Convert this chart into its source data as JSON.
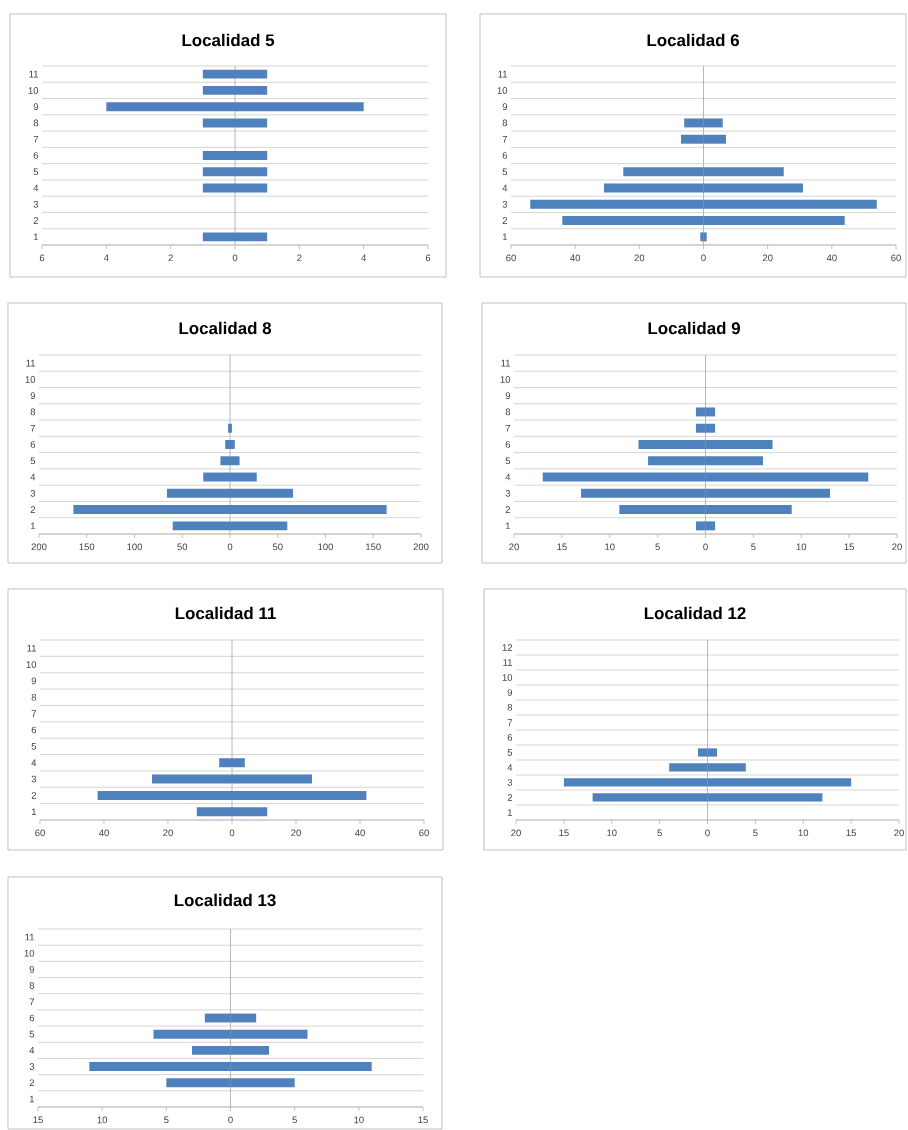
{
  "chart_data": [
    {
      "type": "bar",
      "orientation": "horizontal",
      "title": "Localidad 5",
      "stacked": true,
      "grid": "y",
      "categories": [
        "11",
        "10",
        "9",
        "8",
        "7",
        "6",
        "5",
        "4",
        "3",
        "2",
        "1"
      ],
      "xlim": [
        -6,
        6
      ],
      "xticks": [
        {
          "value": -6,
          "label": "6"
        },
        {
          "value": -4,
          "label": "4"
        },
        {
          "value": -2,
          "label": "2"
        },
        0,
        2,
        4,
        6
      ],
      "series": [
        {
          "color": "#4f81bd",
          "values": [
            -1,
            -1,
            -4,
            -1,
            null,
            -1,
            -1,
            -1,
            null,
            null,
            -1
          ]
        },
        {
          "color": "#4f81bd",
          "values": [
            1,
            1,
            4,
            1,
            null,
            1,
            1,
            1,
            null,
            null,
            1
          ]
        }
      ]
    },
    {
      "type": "bar",
      "orientation": "horizontal",
      "title": "Localidad 6",
      "stacked": true,
      "grid": "y",
      "categories": [
        "11",
        "10",
        "9",
        "8",
        "7",
        "6",
        "5",
        "4",
        "3",
        "2",
        "1"
      ],
      "xlim": [
        -60,
        60
      ],
      "xticks": [
        {
          "value": -60,
          "label": "60"
        },
        {
          "value": -40,
          "label": "40"
        },
        {
          "value": -20,
          "label": "20"
        },
        0,
        20,
        40,
        60
      ],
      "series": [
        {
          "color": "#4f81bd",
          "values": [
            null,
            null,
            null,
            -6,
            -7,
            null,
            -25,
            -31,
            -54,
            -44,
            -1
          ]
        },
        {
          "color": "#4f81bd",
          "values": [
            null,
            null,
            null,
            6,
            7,
            null,
            25,
            31,
            54,
            44,
            1
          ]
        }
      ]
    },
    {
      "type": "bar",
      "orientation": "horizontal",
      "title": "Localidad  8",
      "stacked": true,
      "grid": "y",
      "categories": [
        "11",
        "10",
        "9",
        "8",
        "7",
        "6",
        "5",
        "4",
        "3",
        "2",
        "1"
      ],
      "xlim": [
        -200,
        200
      ],
      "xticks": [
        {
          "value": -200,
          "label": "200"
        },
        {
          "value": -150,
          "label": "150"
        },
        {
          "value": -100,
          "label": "100"
        },
        {
          "value": -50,
          "label": "50"
        },
        0,
        50,
        100,
        150,
        200
      ],
      "series": [
        {
          "color": "#4f81bd",
          "values": [
            null,
            null,
            null,
            null,
            -2,
            -5,
            -10,
            -28,
            -66,
            -164,
            -60
          ]
        },
        {
          "color": "#4f81bd",
          "values": [
            null,
            null,
            null,
            null,
            2,
            5,
            10,
            28,
            66,
            164,
            60
          ]
        }
      ]
    },
    {
      "type": "bar",
      "orientation": "horizontal",
      "title": "Localidad 9",
      "stacked": true,
      "grid": "y",
      "categories": [
        "11",
        "10",
        "9",
        "8",
        "7",
        "6",
        "5",
        "4",
        "3",
        "2",
        "1"
      ],
      "xlim": [
        -20,
        20
      ],
      "xticks": [
        {
          "value": -20,
          "label": "20"
        },
        {
          "value": -15,
          "label": "15"
        },
        {
          "value": -10,
          "label": "10"
        },
        {
          "value": -5,
          "label": "5"
        },
        0,
        5,
        10,
        15,
        20
      ],
      "series": [
        {
          "color": "#4f81bd",
          "values": [
            null,
            null,
            null,
            -1,
            -1,
            -7,
            -6,
            -17,
            -13,
            -9,
            -1
          ]
        },
        {
          "color": "#4f81bd",
          "values": [
            null,
            null,
            null,
            1,
            1,
            7,
            6,
            17,
            13,
            9,
            1
          ]
        }
      ]
    },
    {
      "type": "bar",
      "orientation": "horizontal",
      "title": "Localidad 11",
      "stacked": true,
      "grid": "y",
      "categories": [
        "11",
        "10",
        "9",
        "8",
        "7",
        "6",
        "5",
        "4",
        "3",
        "2",
        "1"
      ],
      "xlim": [
        -60,
        60
      ],
      "xticks": [
        {
          "value": -60,
          "label": "60"
        },
        {
          "value": -40,
          "label": "40"
        },
        {
          "value": -20,
          "label": "20"
        },
        0,
        20,
        40,
        60
      ],
      "series": [
        {
          "color": "#4f81bd",
          "values": [
            null,
            null,
            null,
            null,
            null,
            null,
            null,
            -4,
            -25,
            -42,
            -11
          ]
        },
        {
          "color": "#4f81bd",
          "values": [
            null,
            null,
            null,
            null,
            null,
            null,
            null,
            4,
            25,
            42,
            11
          ]
        }
      ]
    },
    {
      "type": "bar",
      "orientation": "horizontal",
      "title": "Localidad 12",
      "stacked": true,
      "grid": "y",
      "categories": [
        "12",
        "11",
        "10",
        "9",
        "8",
        "7",
        "6",
        "5",
        "4",
        "3",
        "2",
        "1"
      ],
      "xlim": [
        -20,
        20
      ],
      "xticks": [
        {
          "value": -20,
          "label": "20"
        },
        {
          "value": -15,
          "label": "15"
        },
        {
          "value": -10,
          "label": "10"
        },
        {
          "value": -5,
          "label": "5"
        },
        0,
        5,
        10,
        15,
        20
      ],
      "series": [
        {
          "color": "#4f81bd",
          "values": [
            null,
            null,
            null,
            null,
            null,
            null,
            null,
            -1,
            -4,
            -15,
            -12,
            null
          ]
        },
        {
          "color": "#4f81bd",
          "values": [
            null,
            null,
            null,
            null,
            null,
            null,
            null,
            1,
            4,
            15,
            12,
            null
          ]
        }
      ]
    },
    {
      "type": "bar",
      "orientation": "horizontal",
      "title": "Localidad 13",
      "stacked": true,
      "grid": "y",
      "categories": [
        "11",
        "10",
        "9",
        "8",
        "7",
        "6",
        "5",
        "4",
        "3",
        "2",
        "1"
      ],
      "xlim": [
        -15,
        15
      ],
      "xticks": [
        {
          "value": -15,
          "label": "15"
        },
        {
          "value": -10,
          "label": "10"
        },
        {
          "value": -5,
          "label": "5"
        },
        0,
        5,
        10,
        15
      ],
      "series": [
        {
          "color": "#4f81bd",
          "values": [
            null,
            null,
            null,
            null,
            null,
            -2,
            -6,
            -3,
            -11,
            -5,
            null
          ]
        },
        {
          "color": "#4f81bd",
          "values": [
            null,
            null,
            null,
            null,
            null,
            2,
            6,
            3,
            11,
            5,
            null
          ]
        }
      ]
    }
  ]
}
